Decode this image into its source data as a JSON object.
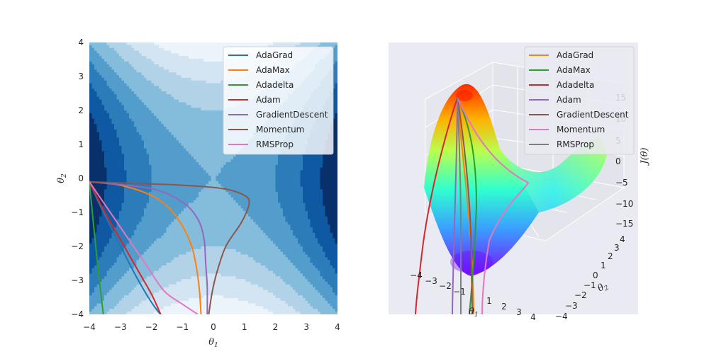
{
  "chart_data": [
    {
      "type": "contour",
      "panel": "left",
      "surface": "J(θ) = θ1² − θ2² (saddle)",
      "xlabel_var": "θ",
      "xlabel_sub": "1",
      "ylabel_var": "θ",
      "ylabel_sub": "2",
      "xlim": [
        -4,
        4
      ],
      "ylim": [
        -4,
        4
      ],
      "xticks": [
        "−4",
        "−3",
        "−2",
        "−1",
        "0",
        "1",
        "2",
        "3",
        "4"
      ],
      "yticks": [
        "−4",
        "−3",
        "−2",
        "−1",
        "0",
        "1",
        "2",
        "3",
        "4"
      ],
      "contour_levels": [
        -16,
        -12,
        -8,
        -4,
        0,
        4,
        8,
        12,
        16
      ],
      "contour_colors": [
        "#ebf3fb",
        "#d3e4f3",
        "#b2d2e8",
        "#84bcdb",
        "#529dcc",
        "#2c7cba",
        "#0e59a2",
        "#08306b"
      ],
      "legend_position": "upper right",
      "series": [
        {
          "name": "AdaGrad",
          "color": "#1f77b4",
          "x": [
            -4,
            -3.6,
            -3.1,
            -2.6,
            -2.1,
            -1.8,
            -1.7
          ],
          "y": [
            -0.1,
            -0.9,
            -1.8,
            -2.7,
            -3.5,
            -3.9,
            -4
          ]
        },
        {
          "name": "AdaMax",
          "color": "#ff7f0e",
          "x": [
            -4,
            -3.0,
            -2.0,
            -1.4,
            -1.0,
            -0.7,
            -0.55,
            -0.45,
            -0.4
          ],
          "y": [
            -0.1,
            -0.2,
            -0.5,
            -0.9,
            -1.4,
            -2.0,
            -2.6,
            -3.3,
            -4
          ]
        },
        {
          "name": "Adadelta",
          "color": "#2ca02c",
          "x": [
            -4,
            -3.85,
            -3.7,
            -3.6,
            -3.55
          ],
          "y": [
            -0.1,
            -1.5,
            -2.8,
            -3.6,
            -4
          ]
        },
        {
          "name": "Adam",
          "color": "#d62728",
          "x": [
            -4,
            -3.5,
            -3.0,
            -2.5,
            -2.0,
            -1.7
          ],
          "y": [
            -0.1,
            -1.0,
            -1.8,
            -2.6,
            -3.4,
            -4
          ]
        },
        {
          "name": "GradientDescent",
          "color": "#9467bd",
          "x": [
            -4,
            -2.0,
            -1.0,
            -0.5,
            -0.3,
            -0.25,
            -0.2,
            -0.2
          ],
          "y": [
            -0.1,
            -0.3,
            -0.7,
            -1.2,
            -1.8,
            -2.5,
            -3.2,
            -4
          ]
        },
        {
          "name": "Momentum",
          "color": "#8c564b",
          "x": [
            -4,
            -2.5,
            -1.0,
            0.3,
            1.0,
            1.15,
            0.9,
            0.4,
            0.1,
            -0.05,
            -0.15
          ],
          "y": [
            -0.1,
            -0.15,
            -0.2,
            -0.3,
            -0.5,
            -0.75,
            -1.3,
            -2.0,
            -2.8,
            -3.4,
            -4
          ]
        },
        {
          "name": "RMSProp",
          "color": "#e377c2",
          "x": [
            -4,
            -3.4,
            -2.8,
            -2.2,
            -1.6,
            -1.0,
            -0.5
          ],
          "y": [
            -0.1,
            -0.9,
            -1.7,
            -2.5,
            -3.3,
            -3.7,
            -4
          ]
        }
      ]
    },
    {
      "type": "surface3d",
      "panel": "right",
      "surface": "J(θ) = θ1² − θ2²",
      "colormap": "rainbow",
      "xlabel_var": "θ",
      "xlabel_sub": "1",
      "ylabel_var": "θ",
      "ylabel_sub": "2",
      "zlabel": "J(θ)",
      "xticks": [
        "−4",
        "−3",
        "−2",
        "−1",
        "0",
        "1",
        "2",
        "3",
        "4"
      ],
      "yticks": [
        "−4",
        "−3",
        "−2",
        "−1",
        "0",
        "1",
        "2",
        "3",
        "4"
      ],
      "zticks": [
        "−15",
        "−10",
        "−5",
        "0",
        "5",
        "10",
        "15"
      ],
      "legend_position": "upper right",
      "series": [
        {
          "name": "AdaGrad",
          "color": "#ff7f0e"
        },
        {
          "name": "AdaMax",
          "color": "#2ca02c"
        },
        {
          "name": "Adadelta",
          "color": "#d62728"
        },
        {
          "name": "Adam",
          "color": "#9467bd"
        },
        {
          "name": "GradientDescent",
          "color": "#8c564b"
        },
        {
          "name": "Momentum",
          "color": "#e377c2"
        },
        {
          "name": "RMSProp",
          "color": "#7f7f7f"
        }
      ]
    }
  ]
}
